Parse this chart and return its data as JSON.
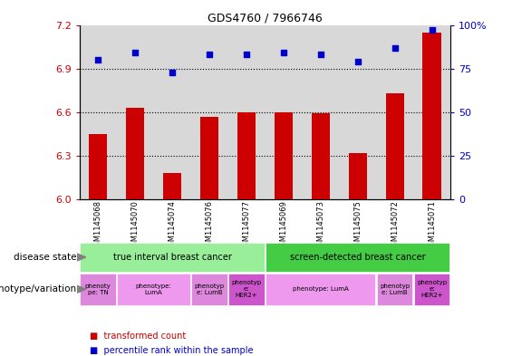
{
  "title": "GDS4760 / 7966746",
  "samples": [
    "GSM1145068",
    "GSM1145070",
    "GSM1145074",
    "GSM1145076",
    "GSM1145077",
    "GSM1145069",
    "GSM1145073",
    "GSM1145075",
    "GSM1145072",
    "GSM1145071"
  ],
  "bar_values": [
    6.45,
    6.63,
    6.18,
    6.57,
    6.6,
    6.6,
    6.59,
    6.32,
    6.73,
    7.15
  ],
  "scatter_values": [
    80,
    84,
    73,
    83,
    83,
    84,
    83,
    79,
    87,
    97
  ],
  "ylim": [
    6.0,
    7.2
  ],
  "y2lim": [
    0,
    100
  ],
  "yticks": [
    6.0,
    6.3,
    6.6,
    6.9,
    7.2
  ],
  "y2ticks": [
    0,
    25,
    50,
    75,
    100
  ],
  "bar_color": "#cc0000",
  "scatter_color": "#0000cc",
  "disease_state_groups": [
    {
      "label": "true interval breast cancer",
      "start": 0,
      "end": 4,
      "color": "#99ee99"
    },
    {
      "label": "screen-detected breast cancer",
      "start": 5,
      "end": 9,
      "color": "#44cc44"
    }
  ],
  "genotype_groups": [
    {
      "label": "phenoty\npe: TN",
      "start": 0,
      "end": 0,
      "color": "#dd88dd"
    },
    {
      "label": "phenotype:\nLumA",
      "start": 1,
      "end": 2,
      "color": "#ee99ee"
    },
    {
      "label": "phenotyp\ne: LumB",
      "start": 3,
      "end": 3,
      "color": "#dd88dd"
    },
    {
      "label": "phenotyp\ne:\nHER2+",
      "start": 4,
      "end": 4,
      "color": "#cc55cc"
    },
    {
      "label": "phenotype: LumA",
      "start": 5,
      "end": 7,
      "color": "#ee99ee"
    },
    {
      "label": "phenotyp\ne: LumB",
      "start": 8,
      "end": 8,
      "color": "#dd88dd"
    },
    {
      "label": "phenotyp\ne:\nHER2+",
      "start": 9,
      "end": 9,
      "color": "#cc55cc"
    }
  ],
  "legend_items": [
    {
      "label": "transformed count",
      "color": "#cc0000"
    },
    {
      "label": "percentile rank within the sample",
      "color": "#0000cc"
    }
  ],
  "label_disease_state": "disease state",
  "label_genotype": "genotype/variation",
  "sample_bg_color": "#d8d8d8",
  "plot_bg_color": "#ffffff"
}
